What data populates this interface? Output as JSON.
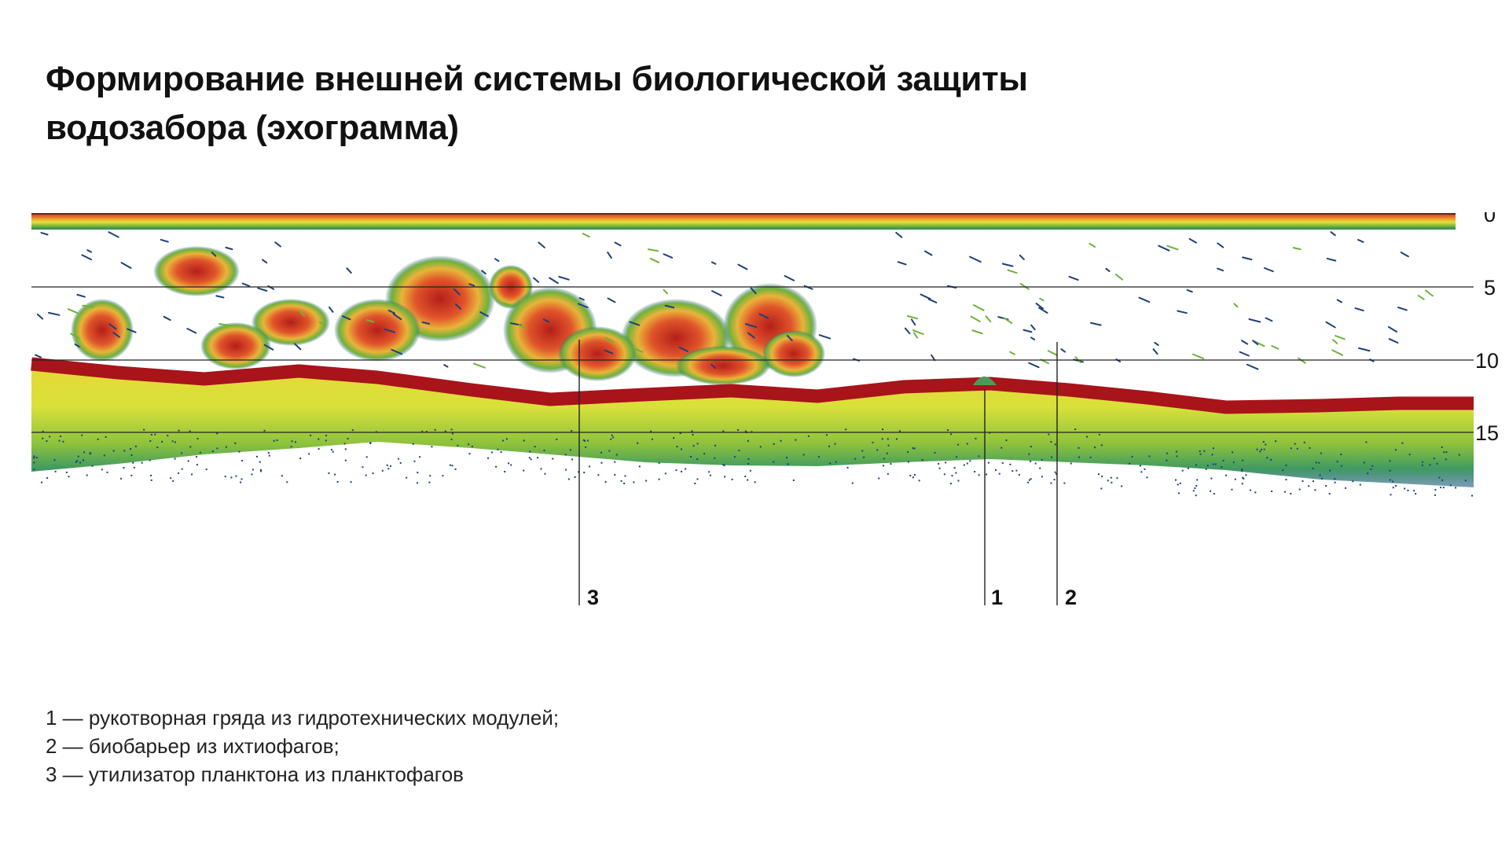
{
  "title_lines": [
    "Формирование внешней системы биологической защиты",
    "водозабора (эхограмма)"
  ],
  "depth_axis": {
    "ticks": [
      0,
      5,
      10,
      15
    ]
  },
  "markers": [
    {
      "id": "3",
      "label": "3"
    },
    {
      "id": "1",
      "label": "1"
    },
    {
      "id": "2",
      "label": "2"
    }
  ],
  "legend": [
    "1 — рукотворная гряда из гидротехнических модулей;",
    "2 — биобарьер из ихтиофагов;",
    "3 — утилизатор планктона из планктофагов"
  ],
  "colors": {
    "bottom_line": "#a8141a",
    "sediment_yellow": "#e9e23a",
    "sediment_green": "#77b83a",
    "scatter_blue": "#1f3f7a",
    "fish_red": "#c8281e",
    "fish_orange": "#e58a2a"
  }
}
